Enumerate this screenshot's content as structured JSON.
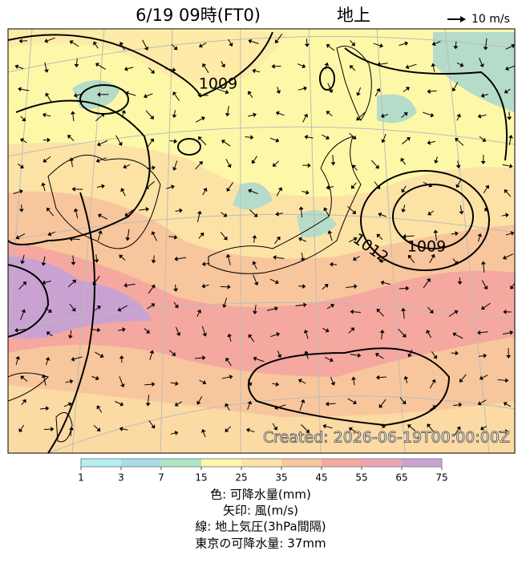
{
  "header": {
    "title": "6/19  09時(FT0)",
    "level": "地上",
    "wind_scale": "10 m/s"
  },
  "map": {
    "contour_labels": [
      "1009",
      "1012",
      "1009"
    ],
    "created": "Created: 2026-06-19T00:00:00Z"
  },
  "colorbar": {
    "ticks": [
      1,
      3,
      7,
      15,
      25,
      35,
      45,
      55,
      65,
      75
    ],
    "colors": [
      "#b4f0f0",
      "#a8dcea",
      "#aee6c4",
      "#fdf8a8",
      "#fde2a6",
      "#f8c69c",
      "#f4a8a0",
      "#eda4b2",
      "#c9a2d2"
    ]
  },
  "captions": [
    "色: 可降水量(mm)",
    "矢印: 風(m/s)",
    "線: 地上気圧(3hPa間隔)",
    "東京の可降水量: 37mm"
  ]
}
